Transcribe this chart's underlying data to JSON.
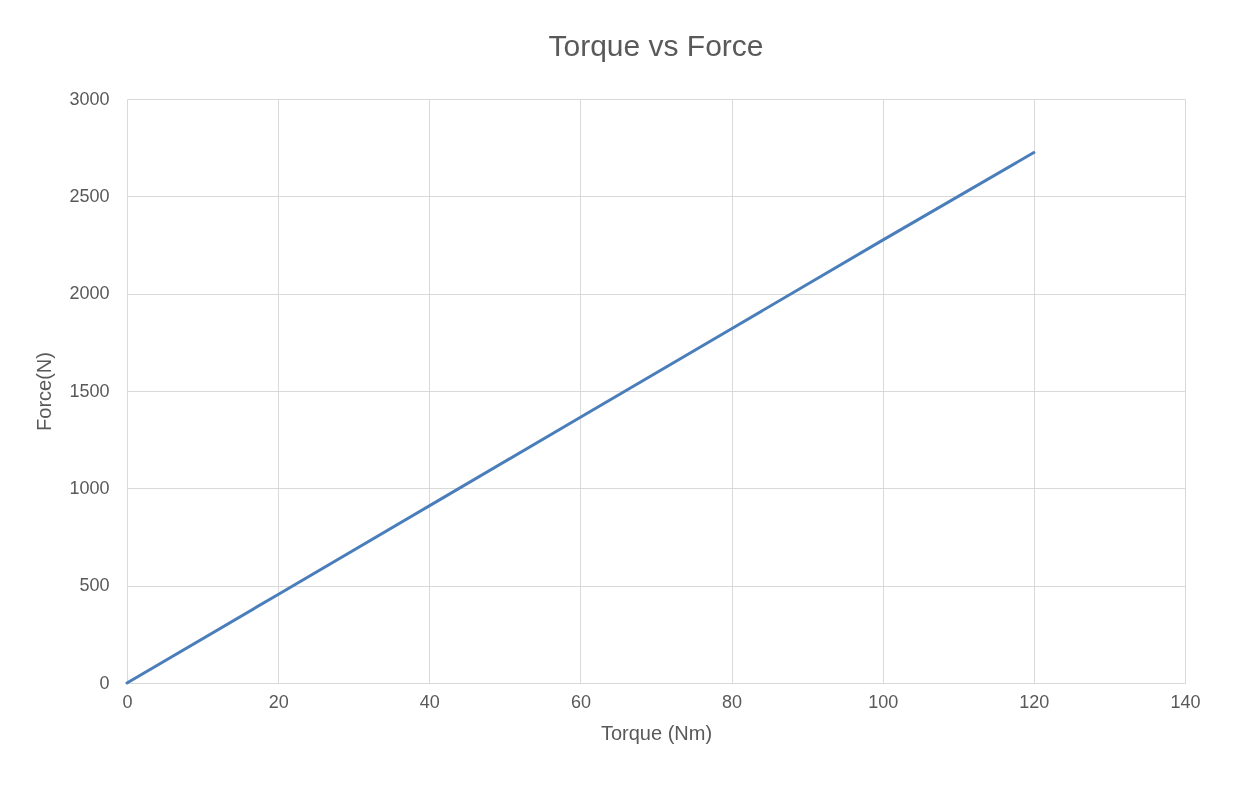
{
  "chart_data": {
    "type": "line",
    "title": "Torque vs Force",
    "xlabel": "Torque (Nm)",
    "ylabel": "Force(N)",
    "x": [
      0,
      20,
      40,
      60,
      80,
      100,
      120
    ],
    "series": [
      {
        "color": "#4a7ebb",
        "values": [
          0,
          455,
          910,
          1365,
          1820,
          2275,
          2725
        ]
      }
    ],
    "xlim": [
      0,
      140
    ],
    "xticks": [
      0,
      20,
      40,
      60,
      80,
      100,
      120,
      140
    ],
    "ylim": [
      0,
      3000
    ],
    "yticks": [
      0,
      500,
      1000,
      1500,
      2000,
      2500,
      3000
    ],
    "grid": true,
    "marker": "none",
    "line_style": "solid",
    "legend": false
  }
}
